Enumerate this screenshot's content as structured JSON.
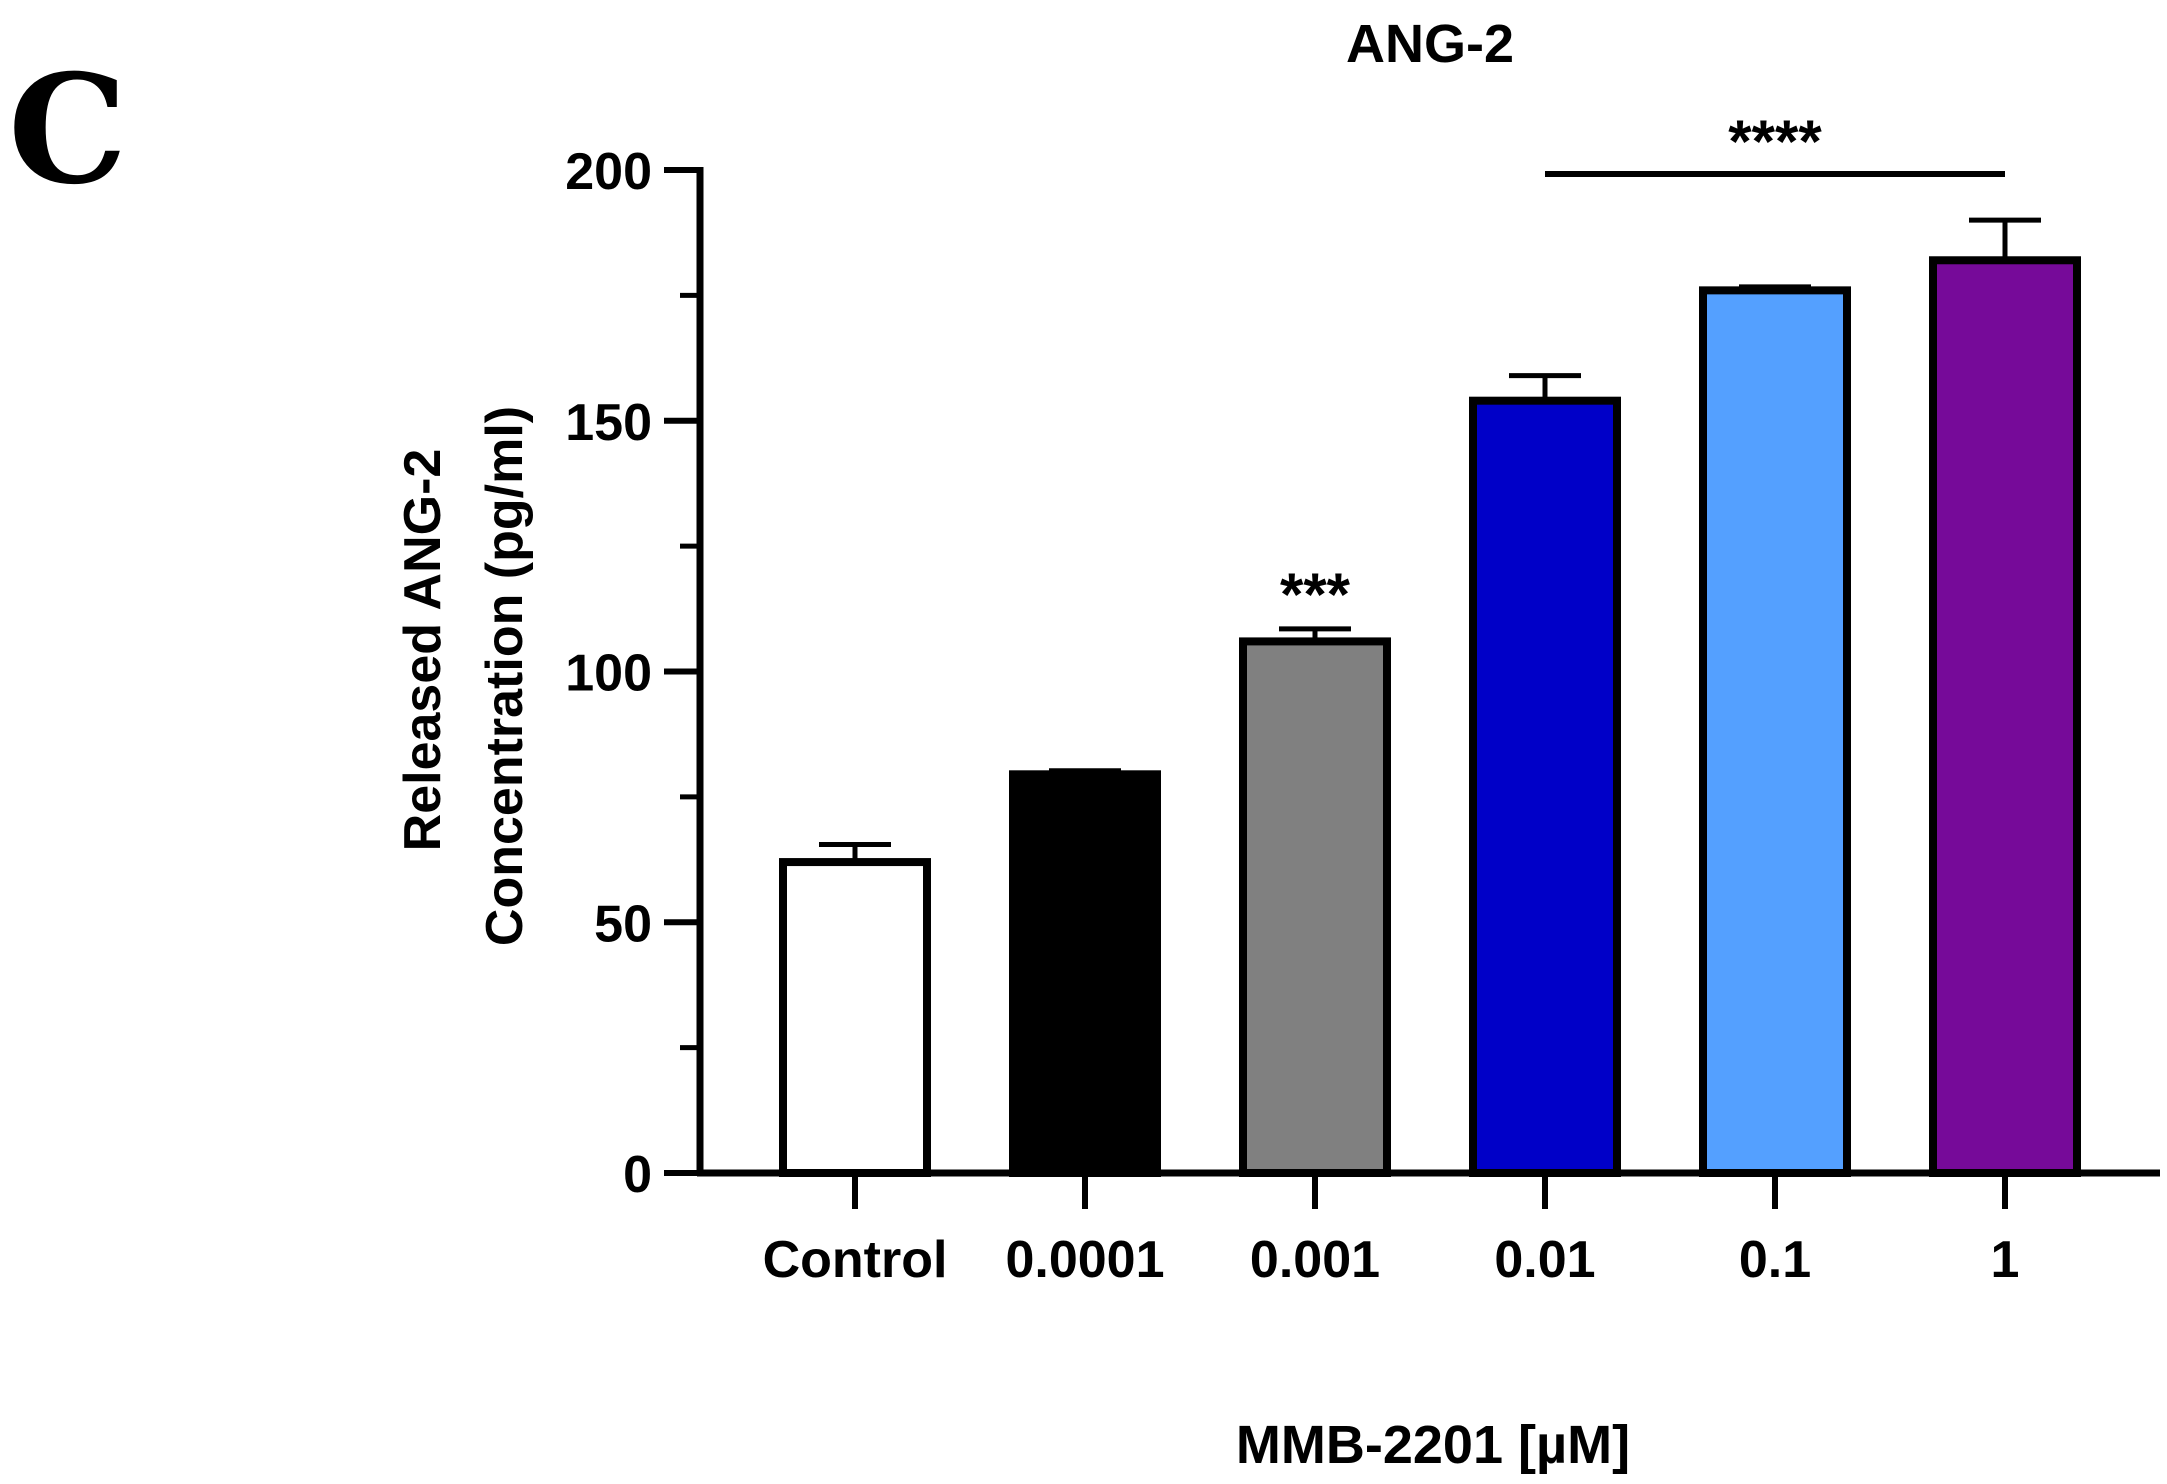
{
  "panel_label": "C",
  "chart_data": {
    "type": "bar",
    "title": "ANG-2",
    "xlabel": "MMB-2201 [µM]",
    "ylabel_line1": "Released ANG-2",
    "ylabel_line2": "Concentration (pg/ml)",
    "ylim": [
      0,
      200
    ],
    "yticks": [
      0,
      50,
      100,
      150,
      200
    ],
    "ytick_labels": [
      "0",
      "50",
      "100",
      "150",
      "200"
    ],
    "grid": false,
    "legend": "none",
    "categories": [
      "Control",
      "0.0001",
      "0.001",
      "0.01",
      "0.1",
      "1"
    ],
    "values": [
      62,
      79.5,
      106,
      154,
      176,
      182
    ],
    "errors": [
      3.5,
      0.7,
      2.5,
      5,
      0.7,
      8
    ],
    "colors": [
      "#ffffff",
      "#000000",
      "#808080",
      "#0000c8",
      "#54a0ff",
      "#760a99"
    ],
    "annotations": [
      {
        "text": "***",
        "category_index": 2
      },
      {
        "text": "****",
        "from_index": 3,
        "to_index": 5
      }
    ]
  }
}
